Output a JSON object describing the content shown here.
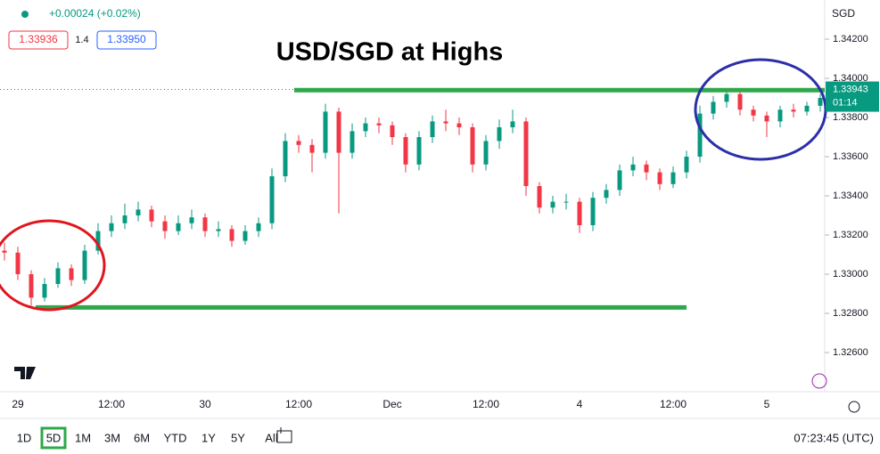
{
  "header": {
    "change": "+0.00024 (+0.02%)",
    "sell": "1.33936",
    "spread": "1.4",
    "buy": "1.33950",
    "currency": "SGD"
  },
  "chart_data": {
    "type": "candlestick",
    "title": "USD/SGD at Highs",
    "categories": [
      null,
      "29",
      null,
      null,
      null,
      null,
      null,
      null,
      "12:00",
      null,
      null,
      null,
      null,
      null,
      null,
      "30",
      null,
      null,
      null,
      null,
      null,
      null,
      "12:00",
      null,
      null,
      null,
      null,
      null,
      null,
      "Dec",
      null,
      null,
      null,
      null,
      null,
      null,
      "12:00",
      null,
      null,
      null,
      null,
      null,
      null,
      "4",
      null,
      null,
      null,
      null,
      null,
      null,
      "12:00",
      null,
      null,
      null,
      null,
      null,
      null,
      "5",
      null,
      null,
      null,
      null
    ],
    "open": [
      1.3312,
      1.3311,
      1.33,
      1.3288,
      1.3295,
      1.3303,
      1.3297,
      1.3312,
      1.3322,
      1.3326,
      1.333,
      1.3333,
      1.3327,
      1.3322,
      1.3326,
      1.3329,
      1.3322,
      1.3323,
      1.3317,
      1.3322,
      1.3326,
      1.335,
      1.3368,
      1.3366,
      1.3362,
      1.3383,
      1.3362,
      1.3373,
      1.3377,
      1.3376,
      1.337,
      1.3356,
      1.337,
      1.3378,
      1.3377,
      1.3375,
      1.3356,
      1.3368,
      1.3375,
      1.3378,
      1.3345,
      1.3334,
      1.3337,
      1.3337,
      1.3325,
      1.3339,
      1.3343,
      1.3353,
      1.3356,
      1.3352,
      1.3346,
      1.3352,
      1.336,
      1.3382,
      1.3388,
      1.3392,
      1.3384,
      1.3381,
      1.3378,
      1.3384,
      1.3383,
      1.3386
    ],
    "high": [
      1.3316,
      1.3314,
      1.3302,
      1.3298,
      1.3306,
      1.3305,
      1.3315,
      1.3326,
      1.333,
      1.3336,
      1.3337,
      1.3335,
      1.333,
      1.333,
      1.3333,
      1.3331,
      1.3327,
      1.3325,
      1.3325,
      1.3329,
      1.3354,
      1.3372,
      1.3371,
      1.3369,
      1.3387,
      1.3385,
      1.3377,
      1.338,
      1.338,
      1.3378,
      1.3372,
      1.3373,
      1.3381,
      1.3384,
      1.338,
      1.3377,
      1.3371,
      1.3379,
      1.3384,
      1.338,
      1.3347,
      1.334,
      1.3341,
      1.3339,
      1.3342,
      1.3346,
      1.3356,
      1.336,
      1.3358,
      1.3354,
      1.3355,
      1.3363,
      1.3386,
      1.3391,
      1.3394,
      1.3393,
      1.3386,
      1.3383,
      1.3386,
      1.3387,
      1.3388,
      1.3392
    ],
    "low": [
      1.3307,
      1.3297,
      1.3284,
      1.3286,
      1.3293,
      1.3294,
      1.3295,
      1.331,
      1.3319,
      1.3323,
      1.3327,
      1.3324,
      1.3318,
      1.332,
      1.3323,
      1.3319,
      1.3319,
      1.3314,
      1.3315,
      1.3319,
      1.3323,
      1.3347,
      1.3362,
      1.3352,
      1.3359,
      1.3331,
      1.3359,
      1.337,
      1.3372,
      1.3366,
      1.3352,
      1.3353,
      1.3367,
      1.3373,
      1.3371,
      1.3352,
      1.3353,
      1.3364,
      1.3372,
      1.334,
      1.3331,
      1.3331,
      1.3333,
      1.3321,
      1.3322,
      1.3336,
      1.334,
      1.335,
      1.3348,
      1.3343,
      1.3344,
      1.3349,
      1.3357,
      1.3379,
      1.3385,
      1.3381,
      1.3378,
      1.337,
      1.3375,
      1.338,
      1.3381,
      1.3383
    ],
    "close": [
      1.3311,
      1.33,
      1.3288,
      1.3295,
      1.3303,
      1.3297,
      1.3312,
      1.3322,
      1.3326,
      1.333,
      1.3333,
      1.3327,
      1.3322,
      1.3326,
      1.3329,
      1.3322,
      1.3323,
      1.3317,
      1.3322,
      1.3326,
      1.335,
      1.3368,
      1.3366,
      1.3362,
      1.3383,
      1.3362,
      1.3373,
      1.3377,
      1.3376,
      1.337,
      1.3356,
      1.337,
      1.3378,
      1.3377,
      1.3375,
      1.3356,
      1.3368,
      1.3375,
      1.3378,
      1.3345,
      1.3334,
      1.3337,
      1.3337,
      1.3325,
      1.3339,
      1.3343,
      1.3353,
      1.3356,
      1.3352,
      1.3346,
      1.3352,
      1.336,
      1.3382,
      1.3388,
      1.3392,
      1.3384,
      1.3381,
      1.3378,
      1.3384,
      1.3383,
      1.3386,
      1.339
    ],
    "up_color": "#089981",
    "down_color": "#f23645",
    "ylim": [
      1.324,
      1.344
    ],
    "yticks": [
      {
        "value": 1.342,
        "label": "1.34200"
      },
      {
        "value": 1.34,
        "label": "1.34000"
      },
      {
        "value": 1.338,
        "label": "1.33800"
      },
      {
        "value": 1.336,
        "label": "1.33600"
      },
      {
        "value": 1.334,
        "label": "1.33400"
      },
      {
        "value": 1.332,
        "label": "1.33200"
      },
      {
        "value": 1.33,
        "label": "1.33000"
      },
      {
        "value": 1.328,
        "label": "1.32800"
      },
      {
        "value": 1.326,
        "label": "1.32600"
      }
    ],
    "last_price": 1.33943,
    "countdown": "01:14",
    "levels": [
      1.3394,
      1.3283
    ],
    "level_color": "#2ea84a"
  },
  "range_buttons": [
    "1D",
    "5D",
    "1M",
    "3M",
    "6M",
    "YTD",
    "1Y",
    "5Y",
    "All"
  ],
  "active_range": "5D",
  "clock": "07:23:45 (UTC)"
}
